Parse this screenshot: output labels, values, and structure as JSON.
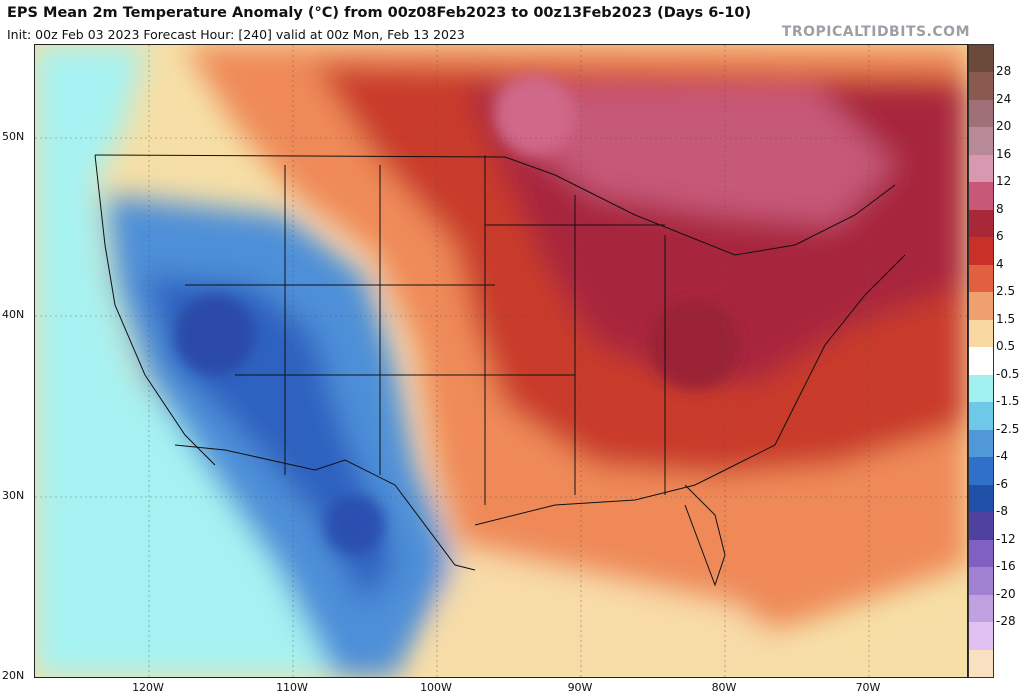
{
  "title": "EPS Mean 2m Temperature Anomaly (°C) from 00z08Feb2023 to 00z13Feb2023 (Days 6-10)",
  "subtitle": "Init: 00z Feb 03 2023   Forecast Hour: [240]   valid at 00z Mon, Feb 13 2023",
  "watermark": "TROPICALTIDBITS.COM",
  "lat_labels": [
    "50N",
    "40N",
    "30N",
    "20N"
  ],
  "lon_labels": [
    "120W",
    "110W",
    "100W",
    "90W",
    "80W",
    "70W"
  ],
  "colorbar": {
    "labels": [
      "28",
      "24",
      "20",
      "16",
      "12",
      "8",
      "6",
      "4",
      "2.5",
      "1.5",
      "0.5",
      "-0.5",
      "-1.5",
      "-2.5",
      "-4",
      "-6",
      "-8",
      "-12",
      "-16",
      "-20",
      "-28"
    ],
    "colors": [
      "#6b4a3a",
      "#8a5a50",
      "#a07078",
      "#b88a98",
      "#d898b0",
      "#c85878",
      "#a82838",
      "#c83028",
      "#e06040",
      "#f0a070",
      "#f8d8a0",
      "#ffffff",
      "#a0f0f0",
      "#70c8e8",
      "#5098d8",
      "#3070c8",
      "#2050a8",
      "#5040a0",
      "#8060c0",
      "#a080d0",
      "#c0a0e0",
      "#e0c0f0",
      "#f8e0c0"
    ]
  },
  "map": {
    "region": "Contiguous United States, southern Canada, northern Mexico",
    "anomaly_regions": [
      {
        "name": "great-lakes-ohio-valley",
        "value": "6"
      },
      {
        "name": "northeast",
        "value": "6"
      },
      {
        "name": "great-basin",
        "value": "-6"
      },
      {
        "name": "northern-mexico",
        "value": "-4"
      },
      {
        "name": "southeast",
        "value": "4"
      },
      {
        "name": "gulf",
        "value": "1.5"
      }
    ]
  }
}
